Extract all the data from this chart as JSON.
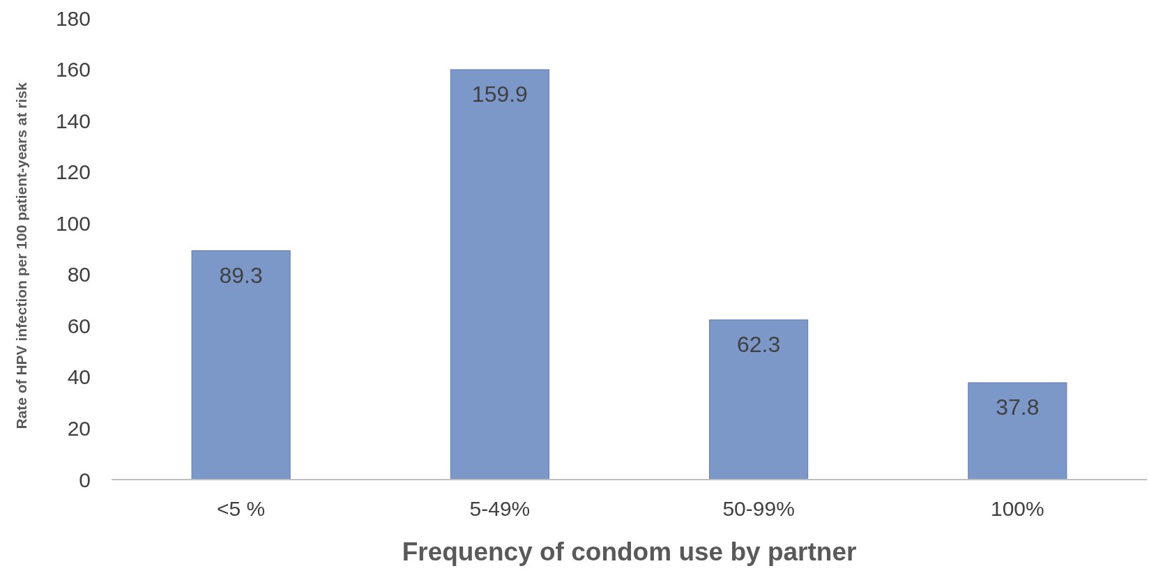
{
  "chart_data": {
    "type": "bar",
    "xlabel": "Frequency of condom use by partner",
    "ylabel": "Rate of HPV infection per 100 patient-years at risk",
    "categories": [
      "<5 %",
      "5-49%",
      "50-99%",
      "100%"
    ],
    "values": [
      89.3,
      159.9,
      62.3,
      37.8
    ],
    "color": "#7b98c8",
    "ylim": [
      0,
      180
    ],
    "yticks": [
      0,
      20,
      40,
      60,
      80,
      100,
      120,
      140,
      160,
      180
    ],
    "data_labels": true,
    "grid": false
  }
}
